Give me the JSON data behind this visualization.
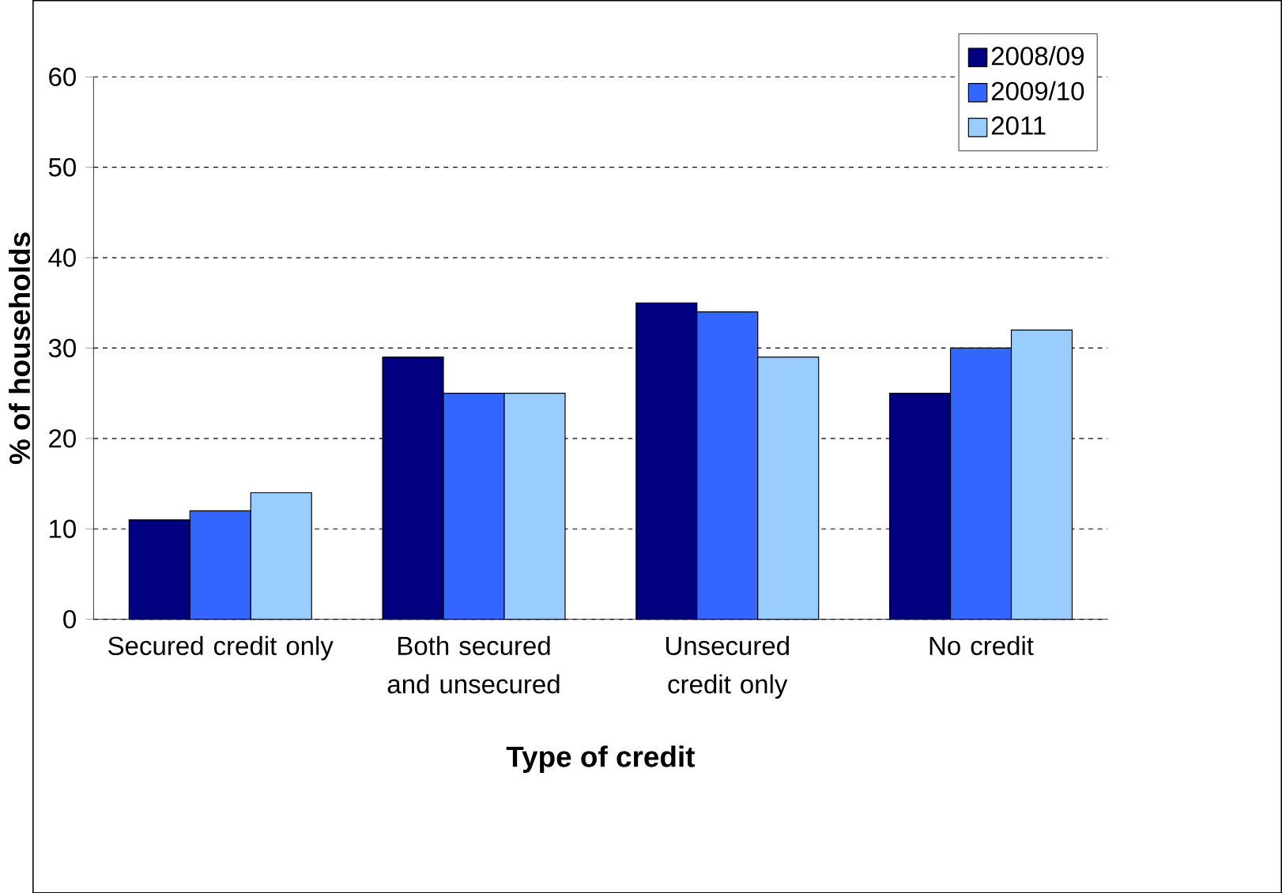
{
  "chart_data": {
    "type": "bar",
    "xlabel": "Type of credit",
    "ylabel": "% of households",
    "categories": [
      "Secured credit only",
      "Both secured and unsecured",
      "Unsecured credit only",
      "No credit"
    ],
    "series": [
      {
        "name": "2008/09",
        "color": "#000080",
        "values": [
          11,
          29,
          35,
          25
        ]
      },
      {
        "name": "2009/10",
        "color": "#3366ff",
        "values": [
          12,
          25,
          34,
          30
        ]
      },
      {
        "name": "2011",
        "color": "#99ccff",
        "values": [
          14,
          25,
          29,
          32
        ]
      }
    ],
    "ylim": [
      0,
      60
    ],
    "yticks": [
      0,
      10,
      20,
      30,
      40,
      50,
      60
    ],
    "grid": "y",
    "legend": "top right"
  }
}
